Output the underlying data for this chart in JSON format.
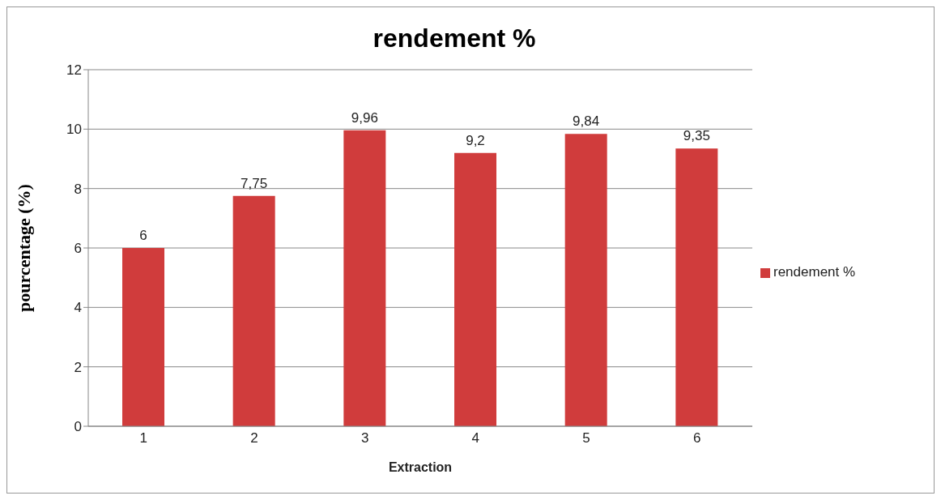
{
  "chart_data": {
    "type": "bar",
    "title": "rendement %",
    "xlabel": "Extraction",
    "ylabel": "pourcentage (%)",
    "categories": [
      "1",
      "2",
      "3",
      "4",
      "5",
      "6"
    ],
    "series": [
      {
        "name": "rendement %",
        "color": "#d03c3c",
        "values": [
          6,
          7.75,
          9.96,
          9.2,
          9.84,
          9.35
        ],
        "value_labels": [
          "6",
          "7,75",
          "9,96",
          "9,2",
          "9,84",
          "9,35"
        ]
      }
    ],
    "ylim": [
      0,
      12
    ],
    "yticks": [
      0,
      2,
      4,
      6,
      8,
      10,
      12
    ],
    "grid": "y",
    "legend": "right"
  }
}
